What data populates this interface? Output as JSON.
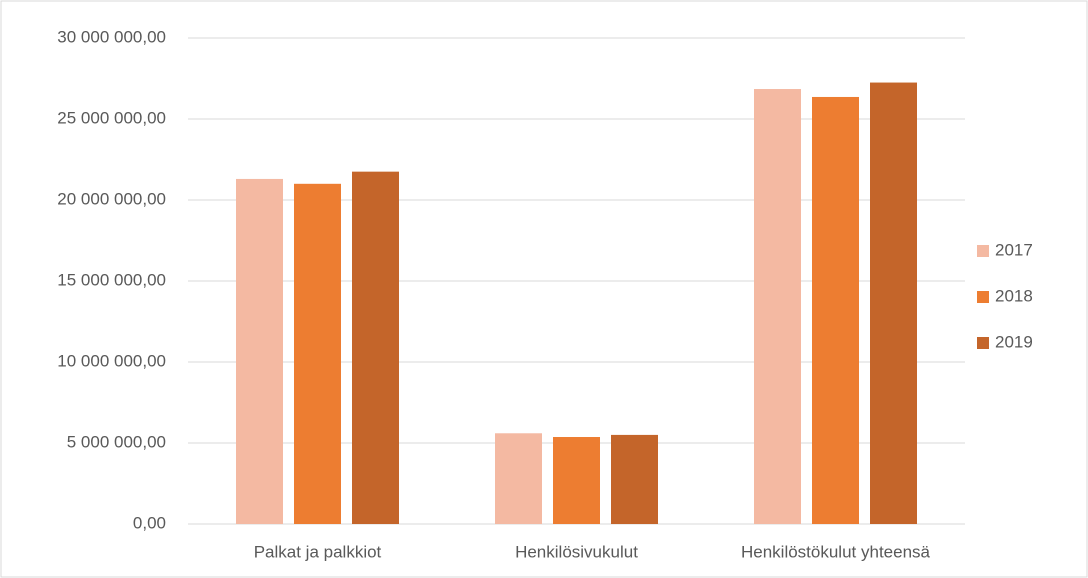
{
  "chart_data": {
    "type": "bar",
    "categories": [
      "Palkat ja palkkiot",
      "Henkilösivukulut",
      "Henkilöstökulut yhteensä"
    ],
    "series": [
      {
        "name": "2017",
        "color": "#f4b9a2",
        "values": [
          21300000,
          5600000,
          26850000
        ]
      },
      {
        "name": "2018",
        "color": "#ed7d31",
        "values": [
          21000000,
          5370000,
          26360000
        ]
      },
      {
        "name": "2019",
        "color": "#c4652a",
        "values": [
          21750000,
          5500000,
          27250000
        ]
      }
    ],
    "ylim": [
      0,
      30000000
    ],
    "yticks": [
      {
        "value": 0,
        "label": "0,00"
      },
      {
        "value": 5000000,
        "label": "5 000 000,00"
      },
      {
        "value": 10000000,
        "label": "10 000 000,00"
      },
      {
        "value": 15000000,
        "label": "15 000 000,00"
      },
      {
        "value": 20000000,
        "label": "20 000 000,00"
      },
      {
        "value": 25000000,
        "label": "25 000 000,00"
      },
      {
        "value": 30000000,
        "label": "30 000 000,00"
      }
    ],
    "grid": true,
    "legend": "right"
  }
}
